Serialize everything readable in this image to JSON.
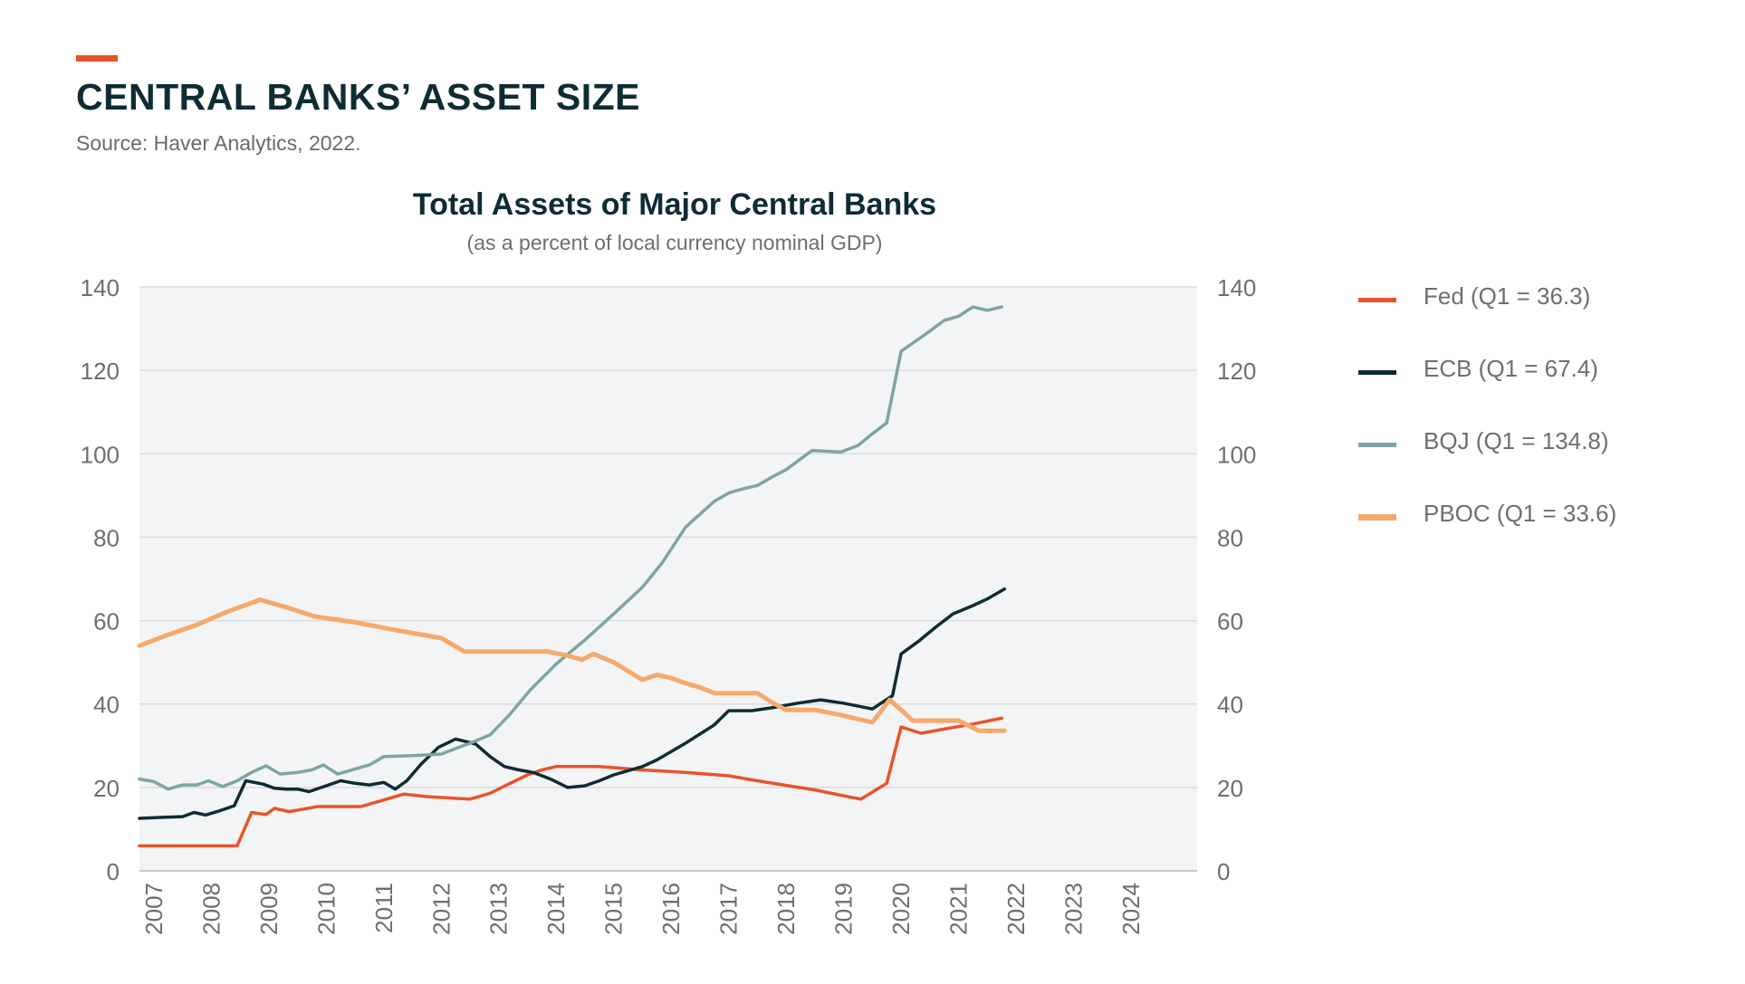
{
  "header": {
    "title": "CENTRAL BANKS’ ASSET SIZE",
    "source": "Source: Haver Analytics, 2022."
  },
  "chart_data": {
    "type": "line",
    "title": "Total Assets of Major Central Banks",
    "subtitle": "(as a percent of local currency nominal GDP)",
    "xlabel": "",
    "ylabel": "",
    "xlim": [
      2006.75,
      2025.15
    ],
    "ylim": [
      0,
      140
    ],
    "y_ticks": [
      "0",
      "20",
      "40",
      "60",
      "80",
      "100",
      "120",
      "140"
    ],
    "x_ticks": [
      "2007",
      "2008",
      "2009",
      "2010",
      "2011",
      "2012",
      "2013",
      "2014",
      "2015",
      "2016",
      "2017",
      "2018",
      "2019",
      "2020",
      "2021",
      "2022",
      "2023",
      "2024"
    ],
    "right_axis": true,
    "grid": "horizontal",
    "legend_position": "right",
    "plot_background": "#f3f4f5",
    "series": [
      {
        "name": "Fed (Q1 = 36.3)",
        "color": "#e8542a",
        "points": [
          [
            2006.75,
            6
          ],
          [
            2007.0,
            6
          ],
          [
            2007.25,
            6
          ],
          [
            2007.5,
            6
          ],
          [
            2007.75,
            6
          ],
          [
            2008.0,
            6
          ],
          [
            2008.25,
            6
          ],
          [
            2008.45,
            6
          ],
          [
            2008.7,
            14
          ],
          [
            2008.95,
            13.5
          ],
          [
            2009.1,
            15
          ],
          [
            2009.35,
            14.2
          ],
          [
            2009.6,
            14.8
          ],
          [
            2009.85,
            15.4
          ],
          [
            2010.6,
            15.4
          ],
          [
            2011.0,
            17
          ],
          [
            2011.35,
            18.4
          ],
          [
            2011.75,
            17.8
          ],
          [
            2012.5,
            17.2
          ],
          [
            2012.85,
            18.6
          ],
          [
            2013.2,
            21
          ],
          [
            2013.5,
            23
          ],
          [
            2013.75,
            24.2
          ],
          [
            2014.0,
            25
          ],
          [
            2014.75,
            25
          ],
          [
            2015.5,
            24.2
          ],
          [
            2016.25,
            23.6
          ],
          [
            2017.0,
            22.8
          ],
          [
            2017.5,
            21.6
          ],
          [
            2018.0,
            20.5
          ],
          [
            2018.5,
            19.4
          ],
          [
            2019.0,
            18
          ],
          [
            2019.3,
            17.2
          ],
          [
            2019.75,
            21
          ],
          [
            2020.0,
            34.5
          ],
          [
            2020.35,
            33
          ],
          [
            2020.75,
            34
          ],
          [
            2021.25,
            35.2
          ],
          [
            2021.75,
            36.6
          ]
        ]
      },
      {
        "name": "ECB (Q1 = 67.4)",
        "color": "#0f2b33",
        "points": [
          [
            2006.75,
            12.6
          ],
          [
            2007.1,
            12.8
          ],
          [
            2007.5,
            13
          ],
          [
            2007.7,
            14
          ],
          [
            2007.9,
            13.4
          ],
          [
            2008.1,
            14.2
          ],
          [
            2008.4,
            15.6
          ],
          [
            2008.6,
            21.6
          ],
          [
            2008.9,
            20.8
          ],
          [
            2009.1,
            19.8
          ],
          [
            2009.3,
            19.6
          ],
          [
            2009.5,
            19.6
          ],
          [
            2009.7,
            19
          ],
          [
            2010.0,
            20.4
          ],
          [
            2010.25,
            21.6
          ],
          [
            2010.5,
            21
          ],
          [
            2010.75,
            20.6
          ],
          [
            2011.0,
            21.2
          ],
          [
            2011.2,
            19.6
          ],
          [
            2011.4,
            21.6
          ],
          [
            2011.65,
            25.6
          ],
          [
            2011.95,
            29.6
          ],
          [
            2012.25,
            31.6
          ],
          [
            2012.6,
            30.4
          ],
          [
            2012.85,
            27.4
          ],
          [
            2013.1,
            25
          ],
          [
            2013.35,
            24.2
          ],
          [
            2013.6,
            23.6
          ],
          [
            2013.9,
            22
          ],
          [
            2014.2,
            20
          ],
          [
            2014.5,
            20.4
          ],
          [
            2014.75,
            21.6
          ],
          [
            2015.0,
            23
          ],
          [
            2015.5,
            25
          ],
          [
            2015.75,
            26.6
          ],
          [
            2016.0,
            28.6
          ],
          [
            2016.25,
            30.6
          ],
          [
            2016.5,
            32.8
          ],
          [
            2016.75,
            35
          ],
          [
            2017.0,
            38.4
          ],
          [
            2017.4,
            38.4
          ],
          [
            2017.8,
            39.2
          ],
          [
            2018.2,
            40.2
          ],
          [
            2018.6,
            41
          ],
          [
            2019.0,
            40.2
          ],
          [
            2019.5,
            38.8
          ],
          [
            2019.85,
            42
          ],
          [
            2020.0,
            52
          ],
          [
            2020.3,
            55
          ],
          [
            2020.6,
            58.4
          ],
          [
            2020.9,
            61.6
          ],
          [
            2021.25,
            63.6
          ],
          [
            2021.5,
            65.2
          ],
          [
            2021.8,
            67.6
          ]
        ]
      },
      {
        "name": "BQJ (Q1 = 134.8)",
        "color": "#7fa4a3",
        "points": [
          [
            2006.75,
            22
          ],
          [
            2007.0,
            21.4
          ],
          [
            2007.25,
            19.6
          ],
          [
            2007.5,
            20.6
          ],
          [
            2007.75,
            20.6
          ],
          [
            2007.95,
            21.6
          ],
          [
            2008.2,
            20.2
          ],
          [
            2008.45,
            21.6
          ],
          [
            2008.7,
            23.6
          ],
          [
            2008.95,
            25.2
          ],
          [
            2009.2,
            23.2
          ],
          [
            2009.5,
            23.6
          ],
          [
            2009.75,
            24.2
          ],
          [
            2009.95,
            25.4
          ],
          [
            2010.2,
            23.2
          ],
          [
            2010.5,
            24.4
          ],
          [
            2010.75,
            25.4
          ],
          [
            2011.0,
            27.4
          ],
          [
            2011.5,
            27.6
          ],
          [
            2012.0,
            28
          ],
          [
            2012.5,
            30.6
          ],
          [
            2012.85,
            32.6
          ],
          [
            2013.2,
            37.6
          ],
          [
            2013.55,
            43.4
          ],
          [
            2014.0,
            49.6
          ],
          [
            2014.5,
            55.4
          ],
          [
            2015.0,
            61.6
          ],
          [
            2015.5,
            68
          ],
          [
            2015.85,
            74
          ],
          [
            2016.25,
            82.4
          ],
          [
            2016.75,
            88.6
          ],
          [
            2017.0,
            90.6
          ],
          [
            2017.25,
            91.6
          ],
          [
            2017.5,
            92.4
          ],
          [
            2017.75,
            94.4
          ],
          [
            2018.0,
            96.2
          ],
          [
            2018.45,
            100.8
          ],
          [
            2018.95,
            100.4
          ],
          [
            2019.25,
            102
          ],
          [
            2019.5,
            104.8
          ],
          [
            2019.75,
            107.4
          ],
          [
            2020.0,
            124.6
          ],
          [
            2020.25,
            127
          ],
          [
            2020.5,
            129.4
          ],
          [
            2020.75,
            132
          ],
          [
            2021.0,
            133
          ],
          [
            2021.25,
            135.2
          ],
          [
            2021.5,
            134.4
          ],
          [
            2021.75,
            135.2
          ]
        ]
      },
      {
        "name": "PBOC (Q1 = 33.6)",
        "color": "#f6a96b",
        "points": [
          [
            2006.75,
            54
          ],
          [
            2007.25,
            56.6
          ],
          [
            2007.75,
            59
          ],
          [
            2008.25,
            62
          ],
          [
            2008.85,
            65
          ],
          [
            2009.3,
            63.2
          ],
          [
            2009.8,
            61
          ],
          [
            2010.5,
            59.6
          ],
          [
            2011.25,
            57.6
          ],
          [
            2012.0,
            55.8
          ],
          [
            2012.4,
            52.6
          ],
          [
            2013.0,
            52.6
          ],
          [
            2013.5,
            52.6
          ],
          [
            2013.85,
            52.6
          ],
          [
            2014.2,
            51.6
          ],
          [
            2014.45,
            50.6
          ],
          [
            2014.65,
            52
          ],
          [
            2015.0,
            50
          ],
          [
            2015.5,
            45.8
          ],
          [
            2015.75,
            47
          ],
          [
            2016.0,
            46.2
          ],
          [
            2016.25,
            45
          ],
          [
            2016.5,
            44
          ],
          [
            2016.75,
            42.6
          ],
          [
            2017.0,
            42.6
          ],
          [
            2017.5,
            42.6
          ],
          [
            2017.75,
            40.4
          ],
          [
            2018.0,
            38.6
          ],
          [
            2018.5,
            38.6
          ],
          [
            2019.0,
            37.2
          ],
          [
            2019.5,
            35.6
          ],
          [
            2019.8,
            41
          ],
          [
            2020.0,
            38.6
          ],
          [
            2020.2,
            36
          ],
          [
            2020.75,
            36
          ],
          [
            2021.0,
            36
          ],
          [
            2021.35,
            33.6
          ],
          [
            2021.8,
            33.6
          ]
        ]
      }
    ]
  }
}
